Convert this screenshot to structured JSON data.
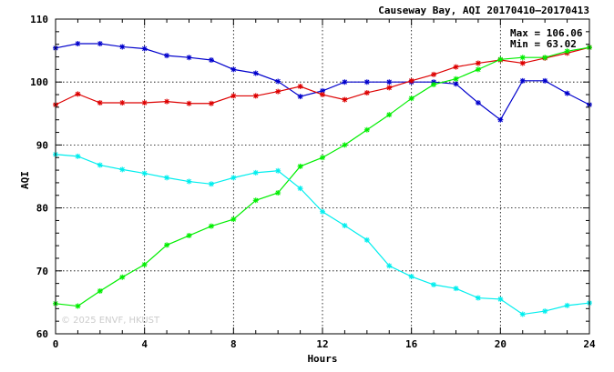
{
  "chart_data": {
    "type": "line",
    "title": "Causeway Bay, AQI 20170410–20170413",
    "xlabel": "Hours",
    "ylabel": "AQI",
    "xlim": [
      0,
      24
    ],
    "ylim": [
      60,
      110
    ],
    "xticks": [
      0,
      4,
      8,
      12,
      16,
      20,
      24
    ],
    "yticks": [
      60,
      70,
      80,
      90,
      100,
      110
    ],
    "grid": true,
    "stats": {
      "max_label": "Max = 106.06",
      "min_label": "Min =  63.02"
    },
    "watermark": "© 2025  ENVF, HKUST",
    "x": [
      0,
      1,
      2,
      3,
      4,
      5,
      6,
      7,
      8,
      9,
      10,
      11,
      12,
      13,
      14,
      15,
      16,
      17,
      18,
      19,
      20,
      21,
      22,
      23,
      24
    ],
    "series": [
      {
        "color": "#0000cc",
        "values": [
          105.4,
          106.1,
          106.1,
          105.6,
          105.3,
          104.2,
          103.9,
          103.5,
          102.0,
          101.4,
          100.1,
          97.7,
          98.6,
          100.0,
          100.0,
          100.0,
          100.0,
          100.0,
          99.7,
          96.7,
          94.0,
          100.2,
          100.2,
          98.2,
          96.4
        ]
      },
      {
        "color": "#dd0000",
        "values": [
          96.4,
          98.1,
          96.7,
          96.7,
          96.7,
          96.9,
          96.6,
          96.6,
          97.8,
          97.8,
          98.5,
          99.3,
          98.0,
          97.2,
          98.3,
          99.1,
          100.2,
          101.2,
          102.4,
          103.0,
          103.5,
          103.0,
          103.8,
          104.6,
          105.5
        ]
      },
      {
        "color": "#00ee00",
        "values": [
          64.8,
          64.4,
          66.8,
          69.0,
          71.0,
          74.1,
          75.6,
          77.1,
          78.2,
          81.2,
          82.4,
          86.6,
          88.0,
          90.0,
          92.4,
          94.8,
          97.4,
          99.6,
          100.5,
          102.0,
          103.6,
          103.9,
          103.9,
          104.9,
          105.5
        ]
      },
      {
        "color": "#00eeee",
        "values": [
          88.5,
          88.2,
          86.8,
          86.1,
          85.5,
          84.8,
          84.2,
          83.8,
          84.8,
          85.6,
          85.9,
          83.1,
          79.4,
          77.2,
          74.9,
          70.8,
          69.1,
          67.8,
          67.2,
          65.7,
          65.5,
          63.1,
          63.6,
          64.5,
          64.9
        ]
      }
    ]
  }
}
